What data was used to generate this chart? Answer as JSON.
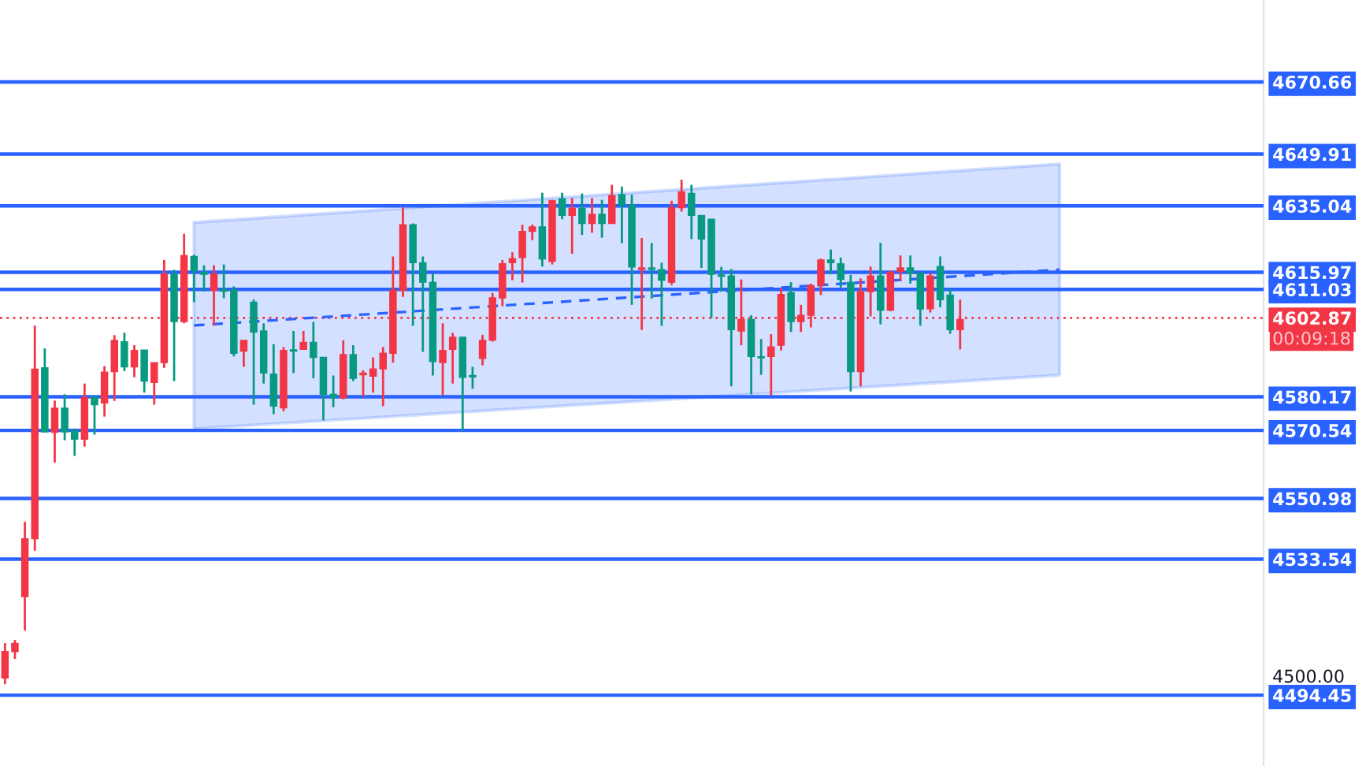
{
  "chart_data": {
    "type": "candlestick",
    "categories": [
      null,
      null,
      null,
      null,
      null,
      null,
      null,
      null,
      null,
      null,
      null,
      null,
      null,
      null,
      null,
      null,
      null,
      null,
      null,
      null,
      null,
      null,
      null,
      null,
      null,
      null,
      null,
      null,
      null,
      null,
      null,
      null,
      null,
      null,
      null,
      null,
      null,
      null,
      null,
      null,
      null,
      null,
      null,
      null,
      null,
      null,
      null,
      null,
      null,
      null,
      null,
      null,
      null,
      null,
      null,
      null,
      null,
      null,
      null,
      null,
      null,
      null,
      null,
      null,
      null,
      null,
      null,
      null,
      null,
      null,
      null,
      null,
      null,
      null,
      null,
      null,
      null,
      null,
      null,
      null,
      null,
      null,
      null,
      null,
      null,
      null,
      null,
      null,
      null,
      null,
      null,
      null,
      null,
      null,
      null,
      null,
      null,
      null,
      null,
      null,
      null,
      null,
      null,
      null,
      null,
      null,
      null,
      null,
      null,
      null,
      null,
      null,
      null,
      null,
      null,
      null,
      null,
      null,
      null,
      null,
      null,
      null,
      null,
      null,
      null,
      null,
      null
    ],
    "ohlc": [
      [
        4507.0,
        4509.4,
        4497.6,
        4499.4
      ],
      [
        4509.3,
        4510.3,
        4504.9,
        4507.0
      ],
      [
        4539.4,
        4544.3,
        4513.0,
        4522.8
      ],
      [
        4588.1,
        4600.6,
        4536.0,
        4539.4
      ],
      [
        4570.1,
        4594.1,
        4570.1,
        4588.5
      ],
      [
        4576.9,
        4579.1,
        4561.3,
        4570.0
      ],
      [
        4570.1,
        4580.9,
        4567.7,
        4576.9
      ],
      [
        4568.0,
        4571.1,
        4563.2,
        4570.4
      ],
      [
        4579.9,
        4584.0,
        4565.9,
        4568.0
      ],
      [
        4577.9,
        4580.1,
        4569.3,
        4580.1
      ],
      [
        4587.3,
        4589.0,
        4574.5,
        4578.4
      ],
      [
        4596.4,
        4597.9,
        4579.0,
        4587.4
      ],
      [
        4588.8,
        4598.6,
        4587.6,
        4596.0
      ],
      [
        4593.5,
        4595.0,
        4585.8,
        4588.8
      ],
      [
        4584.7,
        4593.6,
        4581.4,
        4593.6
      ],
      [
        4590.0,
        4590.0,
        4577.9,
        4584.3
      ],
      [
        4615.4,
        4619.5,
        4588.5,
        4590.0
      ],
      [
        4601.8,
        4616.7,
        4584.7,
        4615.4
      ],
      [
        4620.8,
        4627.0,
        4601.3,
        4601.8
      ],
      [
        4616.4,
        4621.0,
        4607.4,
        4620.5
      ],
      [
        4615.4,
        4618.0,
        4610.4,
        4616.0
      ],
      [
        4615.4,
        4618.0,
        4600.6,
        4610.8
      ],
      [
        4610.5,
        4618.2,
        4608.5,
        4611.0
      ],
      [
        4592.7,
        4611.9,
        4591.8,
        4610.8
      ],
      [
        4596.4,
        4596.4,
        4588.8,
        4593.3
      ],
      [
        4598.8,
        4608.1,
        4577.9,
        4607.4
      ],
      [
        4587.0,
        4601.3,
        4584.0,
        4599.1
      ],
      [
        4577.5,
        4595.3,
        4575.2,
        4586.7
      ],
      [
        4593.5,
        4594.5,
        4576.0,
        4577.0
      ],
      [
        4593.3,
        4599.1,
        4587.0,
        4593.7
      ],
      [
        4595.8,
        4599.1,
        4593.8,
        4593.8
      ],
      [
        4591.5,
        4601.7,
        4585.5,
        4595.8
      ],
      [
        4580.9,
        4591.5,
        4573.4,
        4591.5
      ],
      [
        4579.9,
        4586.3,
        4577.2,
        4580.9
      ],
      [
        4592.3,
        4596.4,
        4579.5,
        4579.9
      ],
      [
        4585.5,
        4595.0,
        4584.7,
        4592.3
      ],
      [
        4587.0,
        4587.8,
        4580.2,
        4586.5
      ],
      [
        4588.2,
        4591.5,
        4581.4,
        4586.1
      ],
      [
        4592.7,
        4594.5,
        4577.5,
        4588.2
      ],
      [
        4610.8,
        4620.5,
        4590.0,
        4592.7
      ],
      [
        4629.6,
        4634.6,
        4608.9,
        4610.8
      ],
      [
        4618.7,
        4630.0,
        4600.6,
        4629.6
      ],
      [
        4613.1,
        4620.5,
        4593.1,
        4618.7
      ],
      [
        4590.3,
        4615.7,
        4586.3,
        4613.1
      ],
      [
        4593.5,
        4601.3,
        4580.6,
        4590.0
      ],
      [
        4597.3,
        4598.6,
        4584.0,
        4593.8
      ],
      [
        4585.8,
        4597.3,
        4570.4,
        4597.3
      ],
      [
        4585.9,
        4588.8,
        4582.5,
        4586.3
      ],
      [
        4596.4,
        4598.0,
        4589.2,
        4591.2
      ],
      [
        4608.6,
        4610.0,
        4596.0,
        4596.5
      ],
      [
        4618.4,
        4619.5,
        4606.2,
        4608.6
      ],
      [
        4619.9,
        4621.7,
        4613.7,
        4618.7
      ],
      [
        4627.7,
        4629.6,
        4613.0,
        4620.2
      ],
      [
        4629.0,
        4629.7,
        4625.2,
        4627.7
      ],
      [
        4619.8,
        4638.8,
        4617.6,
        4629.0
      ],
      [
        4636.5,
        4636.8,
        4618.2,
        4619.1
      ],
      [
        4632.3,
        4638.8,
        4631.2,
        4637.1
      ],
      [
        4634.3,
        4637.3,
        4621.3,
        4632.3
      ],
      [
        4630.0,
        4638.6,
        4626.7,
        4634.3
      ],
      [
        4632.6,
        4637.3,
        4627.3,
        4630.0
      ],
      [
        4630.0,
        4636.8,
        4625.9,
        4632.6
      ],
      [
        4638.0,
        4641.1,
        4630.0,
        4630.0
      ],
      [
        4635.3,
        4640.6,
        4624.3,
        4638.3
      ],
      [
        4617.5,
        4638.3,
        4606.6,
        4635.3
      ],
      [
        4617.2,
        4625.8,
        4599.4,
        4616.8
      ],
      [
        4616.8,
        4624.4,
        4608.4,
        4617.2
      ],
      [
        4613.7,
        4618.7,
        4600.6,
        4616.7
      ],
      [
        4634.5,
        4636.5,
        4612.3,
        4613.1
      ],
      [
        4639.1,
        4642.6,
        4633.4,
        4634.5
      ],
      [
        4632.3,
        4641.1,
        4625.5,
        4638.6
      ],
      [
        4625.5,
        4632.3,
        4617.2,
        4632.3
      ],
      [
        4615.4,
        4631.2,
        4602.8,
        4631.2
      ],
      [
        4614.8,
        4617.5,
        4610.4,
        4615.2
      ],
      [
        4599.5,
        4616.9,
        4583.2,
        4614.9
      ],
      [
        4602.4,
        4613.9,
        4595.0,
        4599.1
      ],
      [
        4591.8,
        4603.6,
        4580.9,
        4602.4
      ],
      [
        4591.4,
        4596.8,
        4586.5,
        4591.7
      ],
      [
        4594.5,
        4598.2,
        4580.6,
        4591.8
      ],
      [
        4609.6,
        4611.4,
        4593.5,
        4595.0
      ],
      [
        4601.8,
        4613.1,
        4598.8,
        4610.1
      ],
      [
        4603.6,
        4606.6,
        4598.8,
        4601.8
      ],
      [
        4612.2,
        4612.7,
        4600.1,
        4603.6
      ],
      [
        4619.5,
        4619.9,
        4609.4,
        4612.3
      ],
      [
        4618.7,
        4622.5,
        4615.4,
        4619.5
      ],
      [
        4613.9,
        4620.2,
        4611.6,
        4618.4
      ],
      [
        4587.4,
        4615.2,
        4581.7,
        4613.1
      ],
      [
        4610.4,
        4614.2,
        4583.2,
        4587.4
      ],
      [
        4614.9,
        4617.6,
        4603.3,
        4610.4
      ],
      [
        4605.1,
        4624.4,
        4601.0,
        4614.9
      ],
      [
        4616.0,
        4616.5,
        4604.8,
        4605.1
      ],
      [
        4617.2,
        4620.8,
        4613.4,
        4616.2
      ],
      [
        4615.7,
        4620.8,
        4612.7,
        4617.2
      ],
      [
        4605.4,
        4615.7,
        4600.6,
        4615.7
      ],
      [
        4614.9,
        4615.7,
        4604.4,
        4605.5
      ],
      [
        4608.1,
        4620.5,
        4605.9,
        4617.6
      ],
      [
        4599.5,
        4611.2,
        4598.3,
        4609.4
      ],
      [
        4602.4,
        4608.1,
        4593.8,
        4599.5
      ],
      null,
      null,
      null,
      null,
      null,
      null,
      null,
      null,
      null,
      null,
      null,
      null,
      null,
      null,
      null,
      null,
      null,
      null,
      null,
      null,
      null,
      null,
      null,
      null,
      null,
      null,
      null,
      null,
      null,
      null
    ],
    "series": [
      {
        "type": "line",
        "color": "#2962ff",
        "line_style": "dashed",
        "values": [
          null,
          null,
          null,
          null,
          null,
          null,
          null,
          null,
          null,
          null,
          null,
          null,
          null,
          null,
          null,
          null,
          null,
          null,
          null,
          4600.7,
          null,
          null,
          null,
          null,
          null,
          null,
          null,
          null,
          null,
          null,
          null,
          null,
          null,
          null,
          null,
          null,
          null,
          null,
          null,
          null,
          null,
          null,
          null,
          null,
          null,
          null,
          null,
          null,
          null,
          null,
          null,
          null,
          null,
          null,
          null,
          null,
          null,
          null,
          null,
          null,
          null,
          null,
          null,
          null,
          null,
          null,
          null,
          null,
          null,
          null,
          null,
          null,
          null,
          null,
          null,
          null,
          null,
          null,
          null,
          null,
          null,
          null,
          null,
          null,
          null,
          null,
          null,
          null,
          null,
          null,
          null,
          null,
          null,
          null,
          null,
          null,
          null,
          null,
          null,
          null,
          null,
          null,
          null,
          null,
          null,
          null,
          4616.7,
          null,
          null,
          null,
          null,
          null,
          null,
          null,
          null,
          null,
          null,
          null,
          null,
          null,
          null,
          null,
          null,
          null,
          null,
          null,
          null
        ],
        "lower": [
          null,
          null,
          null,
          null,
          null,
          null,
          null,
          null,
          null,
          null,
          null,
          null,
          null,
          null,
          null,
          null,
          null,
          null,
          null,
          4571.0,
          null,
          null,
          null,
          null,
          null,
          null,
          null,
          null,
          null,
          null,
          null,
          null,
          null,
          null,
          null,
          null,
          null,
          null,
          null,
          null,
          null,
          null,
          null,
          null,
          null,
          null,
          null,
          null,
          null,
          null,
          null,
          null,
          null,
          null,
          null,
          null,
          null,
          null,
          null,
          null,
          null,
          null,
          null,
          null,
          null,
          null,
          null,
          null,
          null,
          null,
          null,
          null,
          null,
          null,
          null,
          null,
          null,
          null,
          null,
          null,
          null,
          null,
          null,
          null,
          null,
          null,
          null,
          null,
          null,
          null,
          null,
          null,
          null,
          null,
          null,
          null,
          null,
          null,
          null,
          null,
          null,
          null,
          null,
          null,
          null,
          null,
          4586.4,
          null,
          null,
          null,
          null,
          null,
          null,
          null,
          null,
          null,
          null,
          null,
          null,
          null,
          null,
          null,
          null,
          null,
          null,
          null,
          null
        ],
        "upper": [
          null,
          null,
          null,
          null,
          null,
          null,
          null,
          null,
          null,
          null,
          null,
          null,
          null,
          null,
          null,
          null,
          null,
          null,
          null,
          4630.3,
          null,
          null,
          null,
          null,
          null,
          null,
          null,
          null,
          null,
          null,
          null,
          null,
          null,
          null,
          null,
          null,
          null,
          null,
          null,
          null,
          null,
          null,
          null,
          null,
          null,
          null,
          null,
          null,
          null,
          null,
          null,
          null,
          null,
          null,
          null,
          null,
          null,
          null,
          null,
          null,
          null,
          null,
          null,
          null,
          null,
          null,
          null,
          null,
          null,
          null,
          null,
          null,
          null,
          null,
          null,
          null,
          null,
          null,
          null,
          null,
          null,
          null,
          null,
          null,
          null,
          null,
          null,
          null,
          null,
          null,
          null,
          null,
          null,
          null,
          null,
          null,
          null,
          null,
          null,
          null,
          null,
          null,
          null,
          null,
          null,
          null,
          4647.1,
          null,
          null,
          null,
          null,
          null,
          null,
          null,
          null,
          null,
          null,
          null,
          null,
          null,
          null,
          null,
          null,
          null,
          null,
          null,
          null
        ]
      }
    ],
    "ylim": [
      4474.1,
      4694.2
    ],
    "yticks": [
      {
        "value": 4670.66,
        "label": "4670.66"
      },
      {
        "value": 4649.91,
        "label": "4649.91"
      },
      {
        "value": 4635.04,
        "label": "4635.04"
      },
      {
        "value": 4615.97,
        "label": "4615.97"
      },
      {
        "value": 4611.03,
        "label": "4611.03"
      },
      {
        "value": 4602.87,
        "label": "4602.87"
      },
      {
        "value": 4580.17,
        "label": "4580.17"
      },
      {
        "value": 4570.54,
        "label": "4570.54"
      },
      {
        "value": 4550.98,
        "label": "4550.98"
      },
      {
        "value": 4533.54,
        "label": "4533.54"
      },
      {
        "value": 4500,
        "label": "4500.00"
      },
      {
        "value": 4494.45,
        "label": "4494.45"
      }
    ],
    "ref_lines": [
      {
        "axis": "y",
        "value": 4670.66,
        "color": "#2962ff"
      },
      {
        "axis": "y",
        "value": 4649.91,
        "color": "#2962ff"
      },
      {
        "axis": "y",
        "value": 4635.04,
        "color": "#2962ff"
      },
      {
        "axis": "y",
        "value": 4615.97,
        "color": "#2962ff"
      },
      {
        "axis": "y",
        "value": 4611.03,
        "color": "#2962ff"
      },
      {
        "axis": "y",
        "value": 4602.87,
        "color": "#f23645",
        "line_style": "dotted"
      },
      {
        "axis": "y",
        "value": 4580.17,
        "color": "#2962ff"
      },
      {
        "axis": "y",
        "value": 4570.54,
        "color": "#2962ff"
      },
      {
        "axis": "y",
        "value": 4550.98,
        "color": "#2962ff"
      },
      {
        "axis": "y",
        "value": 4533.54,
        "color": "#2962ff"
      },
      {
        "axis": "y",
        "value": 4494.45,
        "color": "#2962ff"
      }
    ],
    "annotations": [
      "00:09:18"
    ]
  }
}
